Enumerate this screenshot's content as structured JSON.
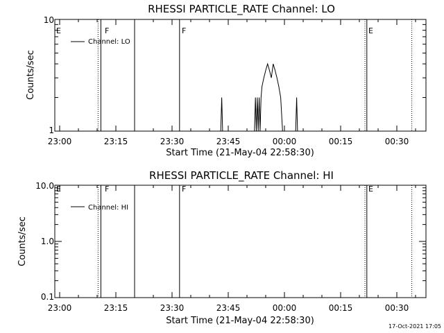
{
  "chart_data": [
    {
      "type": "line",
      "title": "RHESSI PARTICLE_RATE Channel: LO",
      "xlabel": "Start Time (21-May-04 22:58:30)",
      "ylabel": "Counts/sec",
      "x_ticks": [
        "23:00",
        "23:15",
        "23:30",
        "23:45",
        "00:00",
        "00:15",
        "00:30"
      ],
      "y_ticks": [
        "1",
        "10"
      ],
      "y_scale": "log",
      "ylim": [
        1,
        10
      ],
      "xlim": [
        "22:58:30",
        "00:38:30"
      ],
      "legend": {
        "label": "Channel: LO",
        "position": "top-left"
      },
      "series": [
        {
          "name": "Channel: LO",
          "points": [
            [
              "23:43:00",
              1
            ],
            [
              "23:43:15",
              2
            ],
            [
              "23:43:30",
              1
            ],
            [
              "23:52:00",
              1
            ],
            [
              "23:52:15",
              2
            ],
            [
              "23:52:30",
              1
            ],
            [
              "23:52:45",
              2
            ],
            [
              "23:53:00",
              1
            ],
            [
              "23:53:15",
              2
            ],
            [
              "23:53:30",
              1
            ],
            [
              "23:53:45",
              2
            ],
            [
              "23:54:00",
              2.5
            ],
            [
              "23:54:30",
              3
            ],
            [
              "23:55:00",
              3.5
            ],
            [
              "23:55:30",
              4
            ],
            [
              "23:56:00",
              3.5
            ],
            [
              "23:56:30",
              3
            ],
            [
              "23:57:00",
              4
            ],
            [
              "23:57:30",
              3.5
            ],
            [
              "23:58:00",
              3
            ],
            [
              "23:58:30",
              2.5
            ],
            [
              "23:59:00",
              2
            ],
            [
              "23:59:30",
              1
            ],
            [
              "00:03:00",
              1
            ],
            [
              "00:03:15",
              2
            ],
            [
              "00:03:30",
              1
            ]
          ]
        }
      ],
      "flags": [
        {
          "time": "22:58:30",
          "label": "E",
          "style": "none"
        },
        {
          "time": "23:10:15",
          "label": "",
          "style": "dotted"
        },
        {
          "time": "23:11:00",
          "label": "F",
          "style": "solid"
        },
        {
          "time": "23:20:00",
          "label": "",
          "style": "solid"
        },
        {
          "time": "23:32:00",
          "label": "F",
          "style": "solid"
        },
        {
          "time": "00:21:30",
          "label": "",
          "style": "dotted"
        },
        {
          "time": "00:22:00",
          "label": "E",
          "style": "solid"
        },
        {
          "time": "00:34:00",
          "label": "",
          "style": "dotted"
        }
      ]
    },
    {
      "type": "line",
      "title": "RHESSI PARTICLE_RATE Channel: HI",
      "xlabel": "Start Time (21-May-04 22:58:30)",
      "ylabel": "Counts/sec",
      "x_ticks": [
        "23:00",
        "23:15",
        "23:30",
        "23:45",
        "00:00",
        "00:15",
        "00:30"
      ],
      "y_ticks": [
        "0.1",
        "1.0",
        "10.0"
      ],
      "y_scale": "log",
      "ylim": [
        0.1,
        10
      ],
      "xlim": [
        "22:58:30",
        "00:38:30"
      ],
      "legend": {
        "label": "Channel: HI",
        "position": "top-left"
      },
      "series": [
        {
          "name": "Channel: HI",
          "points": []
        }
      ],
      "flags": [
        {
          "time": "22:58:30",
          "label": "E",
          "style": "none"
        },
        {
          "time": "23:10:15",
          "label": "",
          "style": "dotted"
        },
        {
          "time": "23:11:00",
          "label": "F",
          "style": "solid"
        },
        {
          "time": "23:20:00",
          "label": "",
          "style": "solid"
        },
        {
          "time": "23:32:00",
          "label": "F",
          "style": "solid"
        },
        {
          "time": "00:21:30",
          "label": "",
          "style": "dotted"
        },
        {
          "time": "00:22:00",
          "label": "E",
          "style": "solid"
        },
        {
          "time": "00:34:00",
          "label": "",
          "style": "dotted"
        }
      ]
    }
  ],
  "timestamp": "17-Oct-2021 17:05"
}
